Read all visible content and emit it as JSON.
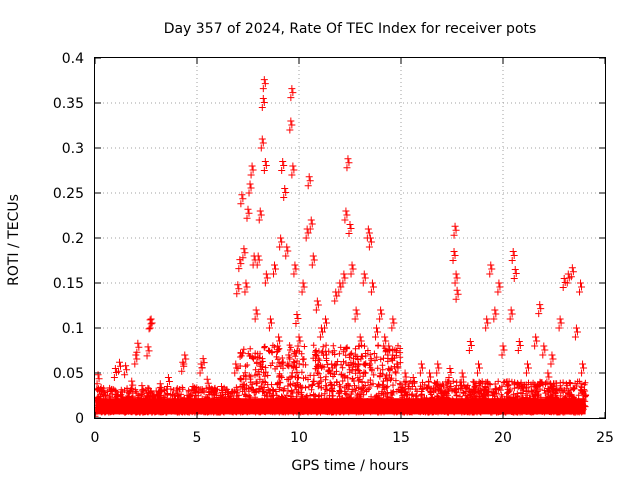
{
  "chart_data": {
    "type": "scatter",
    "title": "Day 357 of 2024, Rate Of TEC Index for receiver pots",
    "xlabel": "GPS time / hours",
    "ylabel": "ROTI / TECUs",
    "xlim": [
      0,
      25
    ],
    "ylim": [
      0,
      0.4
    ],
    "xticks": [
      0,
      5,
      10,
      15,
      20,
      25
    ],
    "yticks": [
      0,
      0.05,
      0.1,
      0.15,
      0.2,
      0.25,
      0.3,
      0.35,
      0.4
    ],
    "xtick_labels": [
      "0",
      "5",
      "10",
      "15",
      "20",
      "25"
    ],
    "ytick_labels": [
      "0",
      "0.05",
      "0.1",
      "0.15",
      "0.2",
      "0.25",
      "0.3",
      "0.35",
      "0.4"
    ],
    "grid": true,
    "marker": "+",
    "color": "#ff0000",
    "series": [
      {
        "points": [
          [
            0.05,
            0.012
          ],
          [
            0.15,
            0.048
          ],
          [
            0.3,
            0.034
          ],
          [
            0.5,
            0.025
          ],
          [
            0.8,
            0.031
          ],
          [
            1.0,
            0.055
          ],
          [
            1.2,
            0.062
          ],
          [
            1.5,
            0.058
          ],
          [
            1.8,
            0.041
          ],
          [
            2.0,
            0.07
          ],
          [
            2.1,
            0.083
          ],
          [
            2.3,
            0.036
          ],
          [
            2.6,
            0.079
          ],
          [
            2.7,
            0.109
          ],
          [
            2.75,
            0.11
          ],
          [
            3.0,
            0.03
          ],
          [
            3.2,
            0.038
          ],
          [
            3.6,
            0.045
          ],
          [
            4.0,
            0.031
          ],
          [
            4.3,
            0.062
          ],
          [
            4.4,
            0.07
          ],
          [
            4.8,
            0.035
          ],
          [
            5.2,
            0.06
          ],
          [
            5.3,
            0.066
          ],
          [
            5.5,
            0.043
          ],
          [
            5.8,
            0.03
          ],
          [
            6.2,
            0.035
          ],
          [
            6.5,
            0.028
          ],
          [
            6.9,
            0.06
          ],
          [
            7.0,
            0.148
          ],
          [
            7.1,
            0.176
          ],
          [
            7.2,
            0.248
          ],
          [
            7.3,
            0.188
          ],
          [
            7.4,
            0.15
          ],
          [
            7.5,
            0.232
          ],
          [
            7.6,
            0.26
          ],
          [
            7.7,
            0.28
          ],
          [
            7.8,
            0.18
          ],
          [
            7.9,
            0.12
          ],
          [
            8.0,
            0.18
          ],
          [
            8.1,
            0.23
          ],
          [
            8.2,
            0.31
          ],
          [
            8.25,
            0.355
          ],
          [
            8.3,
            0.376
          ],
          [
            8.35,
            0.285
          ],
          [
            8.4,
            0.16
          ],
          [
            8.6,
            0.11
          ],
          [
            8.8,
            0.17
          ],
          [
            9.0,
            0.09
          ],
          [
            9.1,
            0.2
          ],
          [
            9.2,
            0.285
          ],
          [
            9.3,
            0.255
          ],
          [
            9.4,
            0.19
          ],
          [
            9.5,
            0.07
          ],
          [
            9.6,
            0.33
          ],
          [
            9.65,
            0.366
          ],
          [
            9.7,
            0.28
          ],
          [
            9.8,
            0.17
          ],
          [
            9.9,
            0.115
          ],
          [
            10.0,
            0.09
          ],
          [
            10.2,
            0.15
          ],
          [
            10.4,
            0.21
          ],
          [
            10.5,
            0.268
          ],
          [
            10.6,
            0.22
          ],
          [
            10.7,
            0.18
          ],
          [
            10.9,
            0.13
          ],
          [
            11.1,
            0.1
          ],
          [
            11.3,
            0.11
          ],
          [
            11.6,
            0.06
          ],
          [
            11.8,
            0.14
          ],
          [
            12.0,
            0.15
          ],
          [
            12.2,
            0.16
          ],
          [
            12.3,
            0.23
          ],
          [
            12.4,
            0.288
          ],
          [
            12.5,
            0.215
          ],
          [
            12.6,
            0.17
          ],
          [
            12.8,
            0.12
          ],
          [
            13.0,
            0.09
          ],
          [
            13.2,
            0.16
          ],
          [
            13.4,
            0.21
          ],
          [
            13.5,
            0.2
          ],
          [
            13.6,
            0.15
          ],
          [
            13.8,
            0.1
          ],
          [
            14.0,
            0.12
          ],
          [
            14.2,
            0.09
          ],
          [
            14.4,
            0.08
          ],
          [
            14.6,
            0.11
          ],
          [
            14.8,
            0.06
          ],
          [
            15.2,
            0.05
          ],
          [
            15.6,
            0.045
          ],
          [
            16.0,
            0.06
          ],
          [
            16.4,
            0.05
          ],
          [
            16.8,
            0.06
          ],
          [
            17.2,
            0.04
          ],
          [
            17.4,
            0.055
          ],
          [
            17.6,
            0.185
          ],
          [
            17.65,
            0.213
          ],
          [
            17.7,
            0.16
          ],
          [
            17.75,
            0.142
          ],
          [
            18.0,
            0.05
          ],
          [
            18.4,
            0.085
          ],
          [
            18.8,
            0.06
          ],
          [
            19.2,
            0.11
          ],
          [
            19.4,
            0.17
          ],
          [
            19.6,
            0.12
          ],
          [
            19.8,
            0.15
          ],
          [
            20.0,
            0.08
          ],
          [
            20.4,
            0.12
          ],
          [
            20.5,
            0.185
          ],
          [
            20.6,
            0.165
          ],
          [
            20.8,
            0.085
          ],
          [
            21.2,
            0.06
          ],
          [
            21.6,
            0.09
          ],
          [
            21.8,
            0.126
          ],
          [
            22.0,
            0.08
          ],
          [
            22.2,
            0.05
          ],
          [
            22.4,
            0.07
          ],
          [
            22.8,
            0.11
          ],
          [
            23.0,
            0.155
          ],
          [
            23.2,
            0.16
          ],
          [
            23.4,
            0.167
          ],
          [
            23.6,
            0.1
          ],
          [
            23.8,
            0.15
          ],
          [
            23.9,
            0.06
          ],
          [
            24.0,
            0.03
          ]
        ]
      }
    ]
  }
}
